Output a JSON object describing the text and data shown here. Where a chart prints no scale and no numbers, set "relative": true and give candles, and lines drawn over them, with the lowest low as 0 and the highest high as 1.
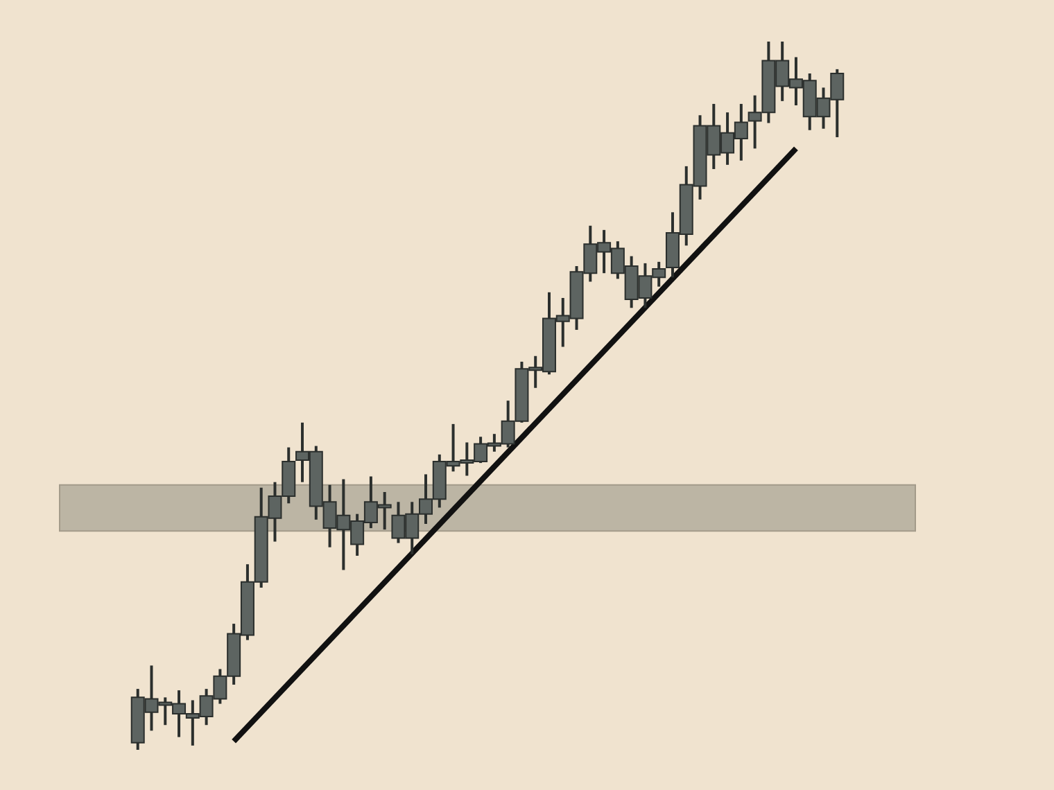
{
  "chart_data": {
    "type": "candlestick",
    "relative": true,
    "color": "#5d6461",
    "categories": [
      null,
      null,
      null,
      null,
      null,
      null,
      null,
      null,
      null,
      null,
      null,
      null,
      null,
      null,
      null,
      null,
      null,
      null,
      null,
      null,
      null,
      null,
      null,
      null,
      null,
      null,
      null,
      null,
      null,
      null,
      null,
      null,
      null,
      null,
      null,
      null,
      null,
      null,
      null,
      null,
      null,
      null,
      null,
      null,
      null,
      null,
      null,
      null,
      null,
      null,
      null,
      null
    ],
    "ohlc": [
      [
        0.01,
        0.086,
        0,
        0.074
      ],
      [
        0.053,
        0.119,
        0.027,
        0.072
      ],
      [
        0.065,
        0.074,
        0.035,
        0.065
      ],
      [
        0.051,
        0.084,
        0.018,
        0.065
      ],
      [
        0.045,
        0.07,
        0.006,
        0.051
      ],
      [
        0.047,
        0.086,
        0.035,
        0.076
      ],
      [
        0.072,
        0.114,
        0.065,
        0.104
      ],
      [
        0.104,
        0.178,
        0.092,
        0.164
      ],
      [
        0.162,
        0.262,
        0.155,
        0.237
      ],
      [
        0.237,
        0.37,
        0.229,
        0.329
      ],
      [
        0.327,
        0.378,
        0.294,
        0.358
      ],
      [
        0.358,
        0.427,
        0.348,
        0.407
      ],
      [
        0.409,
        0.462,
        0.378,
        0.421
      ],
      [
        0.344,
        0.429,
        0.325,
        0.421
      ],
      [
        0.313,
        0.374,
        0.286,
        0.35
      ],
      [
        0.311,
        0.382,
        0.254,
        0.331
      ],
      [
        0.29,
        0.333,
        0.274,
        0.323
      ],
      [
        0.321,
        0.386,
        0.313,
        0.35
      ],
      [
        0.344,
        0.364,
        0.311,
        0.344
      ],
      [
        0.299,
        0.35,
        0.292,
        0.331
      ],
      [
        0.299,
        0.35,
        0.276,
        0.333
      ],
      [
        0.333,
        0.389,
        0.319,
        0.354
      ],
      [
        0.354,
        0.417,
        0.342,
        0.407
      ],
      [
        0.401,
        0.46,
        0.393,
        0.407
      ],
      [
        0.407,
        0.434,
        0.387,
        0.407
      ],
      [
        0.407,
        0.442,
        0.405,
        0.432
      ],
      [
        0.431,
        0.446,
        0.421,
        0.431
      ],
      [
        0.432,
        0.493,
        0.427,
        0.464
      ],
      [
        0.464,
        0.548,
        0.462,
        0.538
      ],
      [
        0.538,
        0.556,
        0.511,
        0.538
      ],
      [
        0.534,
        0.646,
        0.53,
        0.609
      ],
      [
        0.605,
        0.638,
        0.569,
        0.613
      ],
      [
        0.609,
        0.683,
        0.593,
        0.675
      ],
      [
        0.673,
        0.74,
        0.661,
        0.714
      ],
      [
        0.703,
        0.734,
        0.673,
        0.716
      ],
      [
        0.673,
        0.718,
        0.665,
        0.708
      ],
      [
        0.636,
        0.697,
        0.624,
        0.683
      ],
      [
        0.638,
        0.687,
        0.624,
        0.669
      ],
      [
        0.667,
        0.689,
        0.654,
        0.679
      ],
      [
        0.681,
        0.759,
        0.667,
        0.73
      ],
      [
        0.728,
        0.824,
        0.712,
        0.798
      ],
      [
        0.796,
        0.896,
        0.777,
        0.881
      ],
      [
        0.84,
        0.912,
        0.82,
        0.881
      ],
      [
        0.843,
        0.9,
        0.826,
        0.871
      ],
      [
        0.863,
        0.912,
        0.832,
        0.886
      ],
      [
        0.888,
        0.924,
        0.849,
        0.9
      ],
      [
        0.9,
        1,
        0.885,
        0.973
      ],
      [
        0.937,
        1,
        0.916,
        0.973
      ],
      [
        0.935,
        0.978,
        0.91,
        0.947
      ],
      [
        0.894,
        0.955,
        0.875,
        0.945
      ],
      [
        0.894,
        0.935,
        0.877,
        0.92
      ],
      [
        0.918,
        0.961,
        0.865,
        0.955
      ]
    ],
    "series": [
      {
        "type": "line",
        "values": [
          null,
          null,
          null,
          null,
          null,
          null,
          null,
          0.012,
          null,
          null,
          null,
          null,
          null,
          null,
          null,
          null,
          null,
          null,
          null,
          null,
          null,
          null,
          null,
          null,
          null,
          null,
          null,
          null,
          null,
          null,
          null,
          null,
          null,
          null,
          null,
          null,
          null,
          null,
          null,
          null,
          null,
          null,
          null,
          null,
          null,
          null,
          null,
          null,
          0.849,
          null,
          null,
          null
        ],
        "color": "#111111"
      }
    ],
    "bands": [
      {
        "axis": "y",
        "from": 0.309,
        "to": 0.374,
        "color": "#bcb5a4"
      }
    ]
  }
}
